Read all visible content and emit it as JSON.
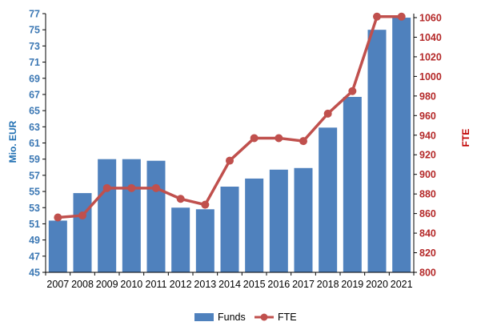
{
  "chart_data": {
    "type": "bar+line",
    "categories": [
      "2007",
      "2008",
      "2009",
      "2010",
      "2011",
      "2012",
      "2013",
      "2014",
      "2015",
      "2016",
      "2017",
      "2018",
      "2019",
      "2020",
      "2021"
    ],
    "series": [
      {
        "name": "Funds",
        "type": "bar",
        "axis": "left",
        "values": [
          51.4,
          54.8,
          59.0,
          59.0,
          58.8,
          53.0,
          52.8,
          55.6,
          56.6,
          57.7,
          57.9,
          62.9,
          66.7,
          75.0,
          76.5
        ]
      },
      {
        "name": "FTE",
        "type": "line",
        "axis": "right",
        "values": [
          856,
          858,
          886,
          886,
          886,
          875,
          869,
          914,
          937,
          937,
          934,
          962,
          985,
          1061,
          1061
        ]
      }
    ],
    "ylabel_left": "Mio. EUR",
    "ylabel_right": "FTE",
    "ylim_left": [
      45,
      77
    ],
    "ylim_right": [
      800,
      1060
    ],
    "yticks_left": [
      "45",
      "47",
      "49",
      "51",
      "53",
      "55",
      "57",
      "59",
      "61",
      "63",
      "65",
      "67",
      "69",
      "71",
      "73",
      "75",
      "77"
    ],
    "yticks_right": [
      "800",
      "820",
      "840",
      "860",
      "880",
      "900",
      "920",
      "940",
      "960",
      "980",
      "1000",
      "1020",
      "1040",
      "1060"
    ],
    "grid": false,
    "legend": {
      "position": "bottom",
      "entries": [
        "Funds",
        "FTE"
      ]
    },
    "colors": {
      "bar": "#4f81bd",
      "line": "#c0504d",
      "left_axis_text": "#3c78b4",
      "right_axis_text": "#b42828"
    }
  }
}
